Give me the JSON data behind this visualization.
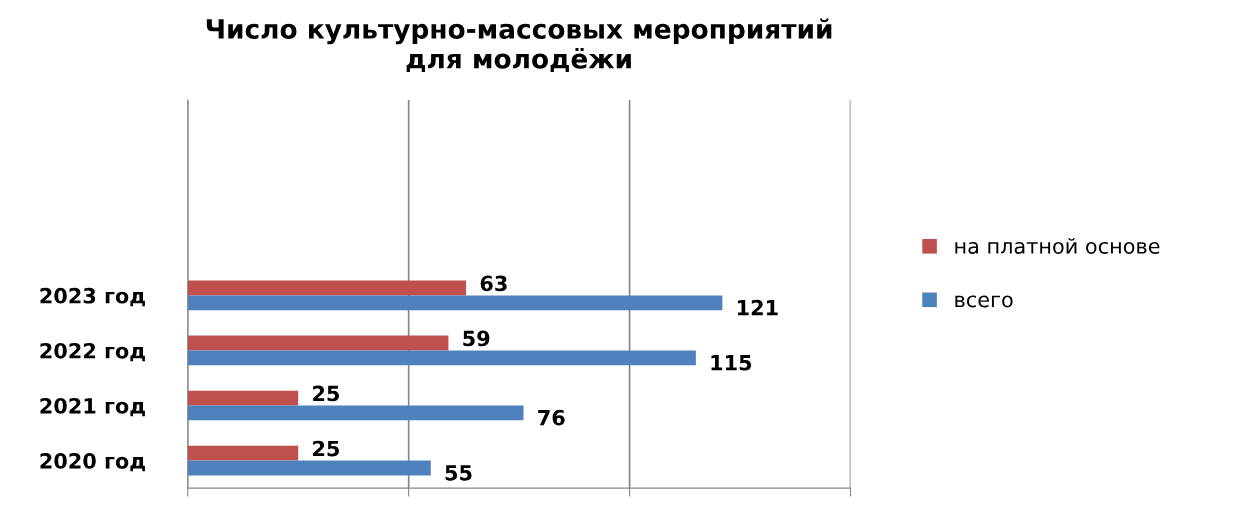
{
  "chart_data": {
    "type": "bar",
    "orientation": "horizontal",
    "title": "Число культурно-массовых мероприятий\nдля молодёжи",
    "categories": [
      "2023 год",
      "2022 год",
      "2021 год",
      "2020 год"
    ],
    "series": [
      {
        "name": "на платной основе",
        "color": "#c0504d",
        "values": [
          63,
          59,
          25,
          25
        ]
      },
      {
        "name": "всего",
        "color": "#4f81bd",
        "values": [
          121,
          115,
          76,
          55
        ]
      }
    ],
    "xlim": [
      0,
      150
    ],
    "xticks": [
      {
        "value": 0,
        "label": null
      },
      {
        "value": 50,
        "label": null
      },
      {
        "value": 100,
        "label": null
      },
      {
        "value": 150,
        "label": null
      }
    ],
    "tick_labels": "y",
    "grid": "x",
    "legend": "right",
    "data_labels": true
  }
}
